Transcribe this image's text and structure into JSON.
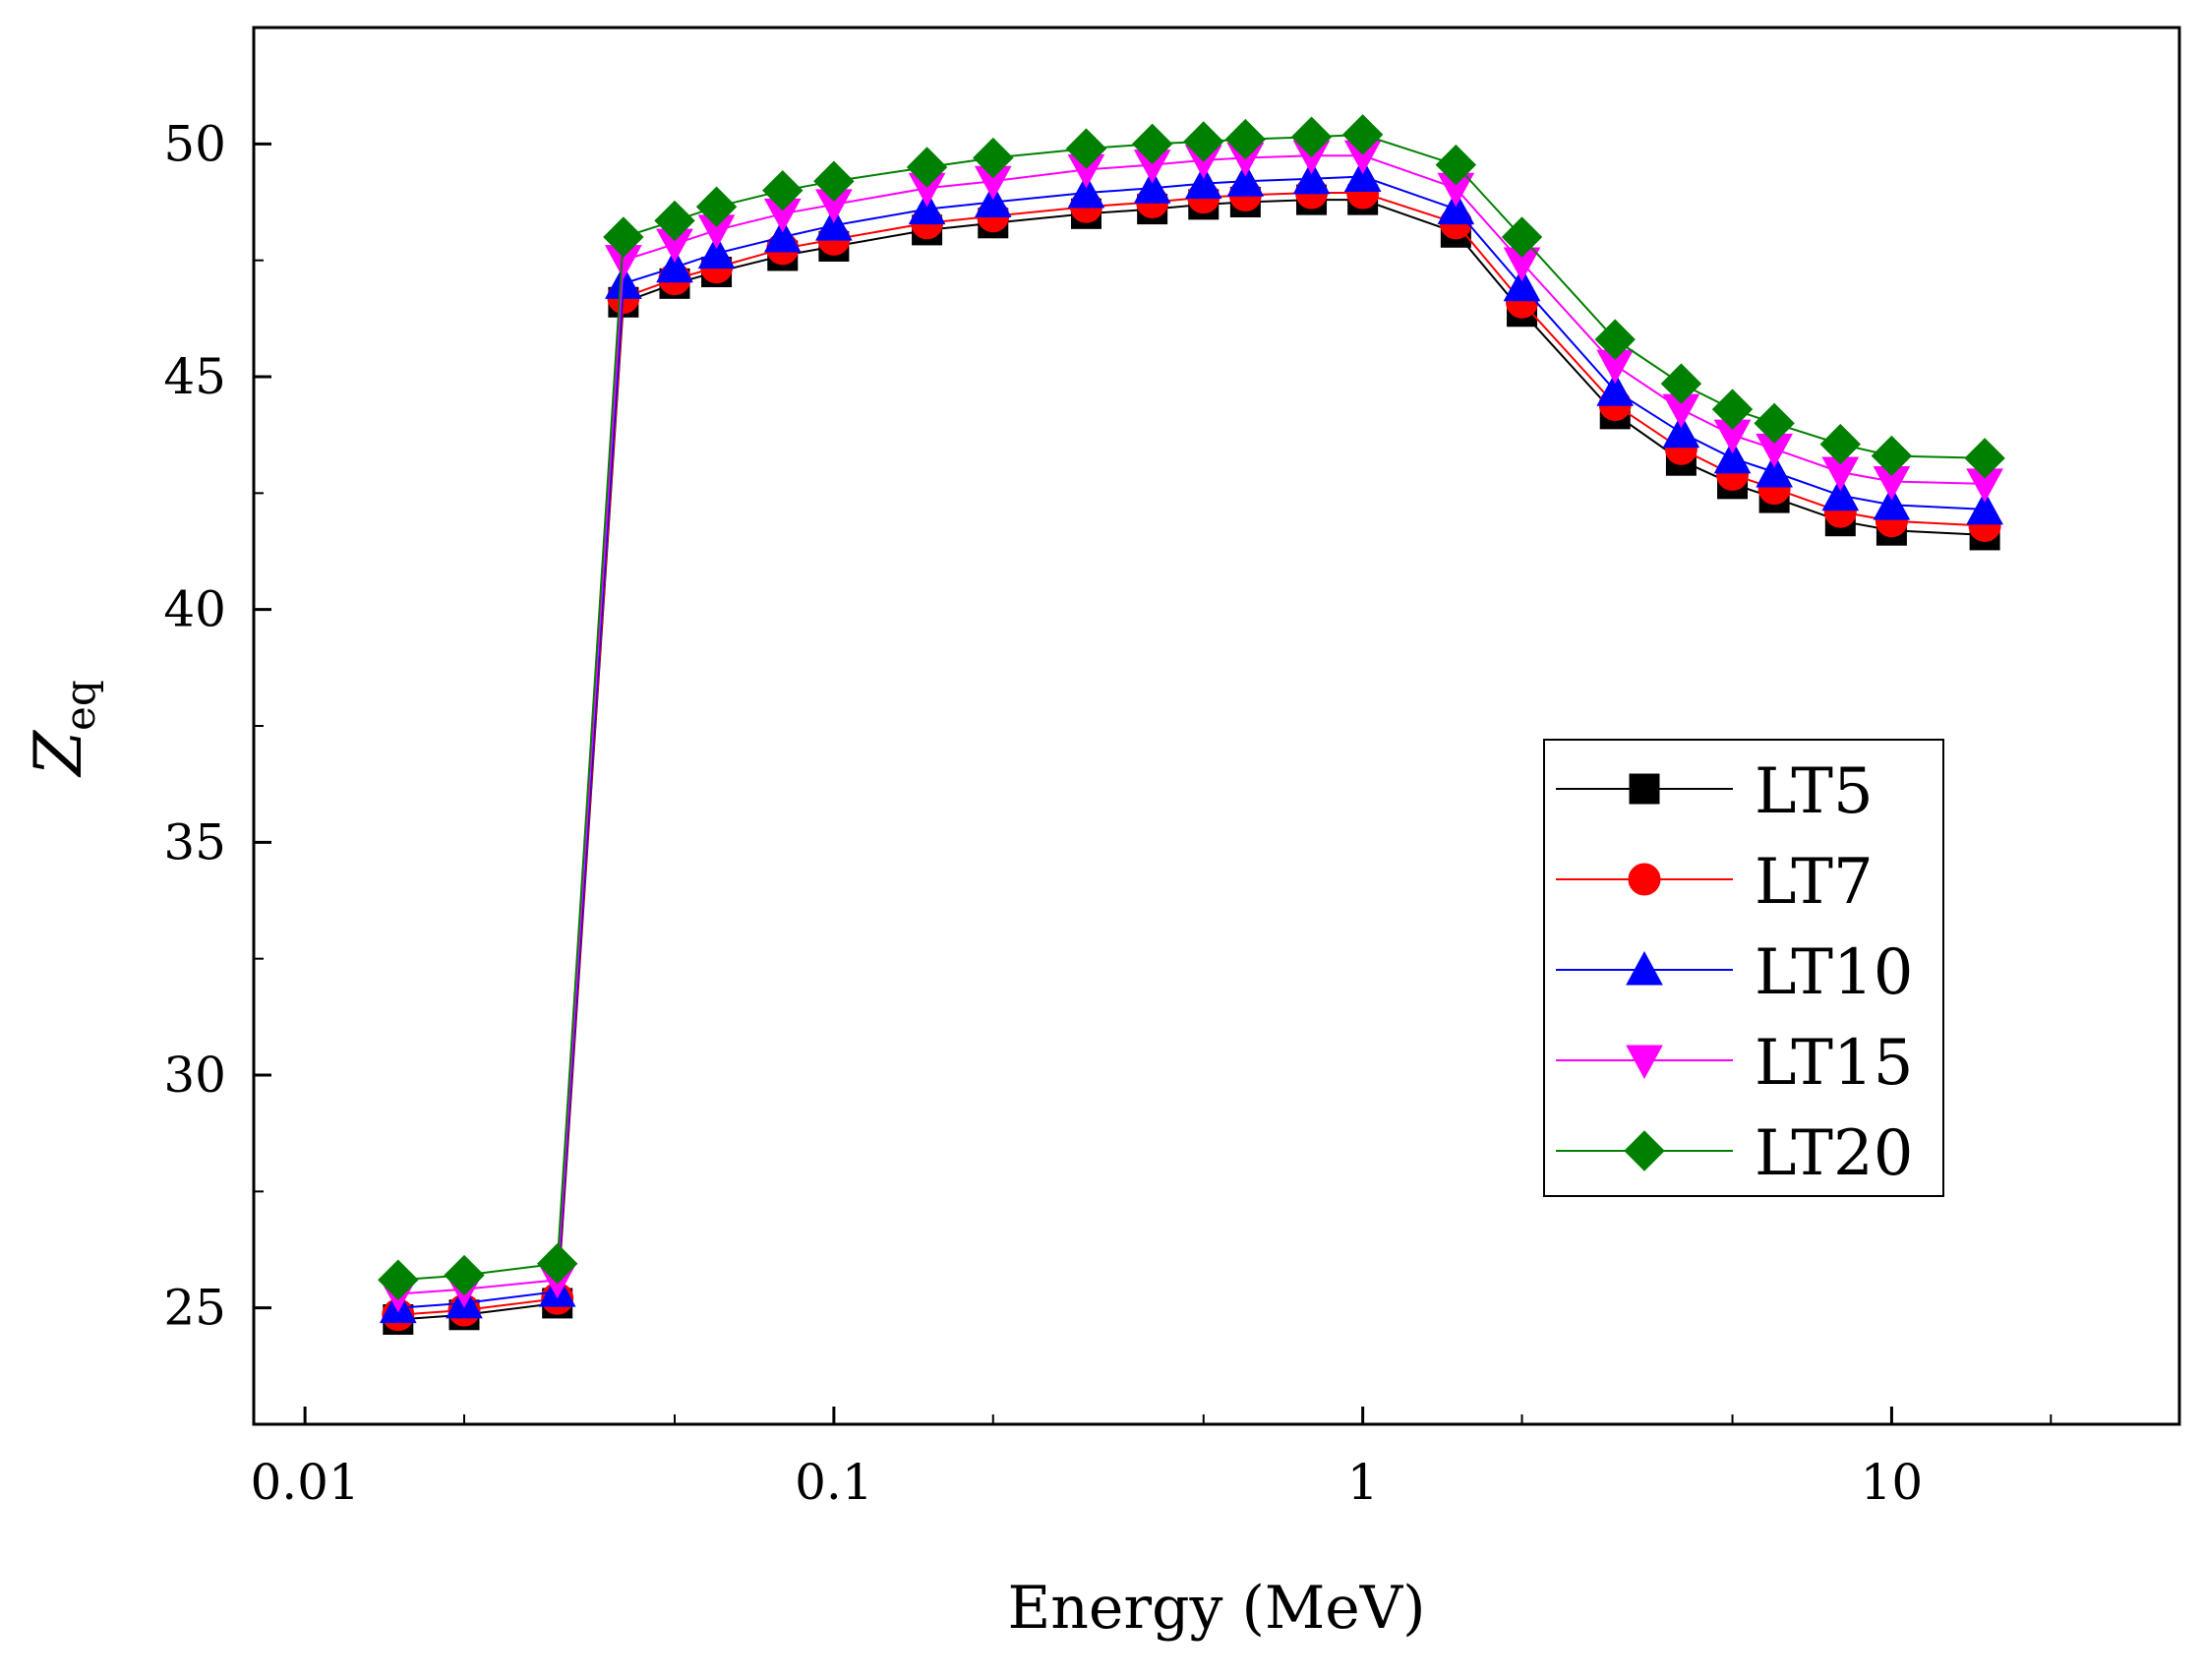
{
  "chart_data": {
    "type": "line",
    "title": "",
    "xlabel": "Energy (MeV)",
    "ylabel_main": "Z",
    "ylabel_sub": "eq",
    "xscale": "log",
    "xlim": [
      0.008,
      35
    ],
    "ylim": [
      22.5,
      52.5
    ],
    "xticks": [
      {
        "value": 0.01,
        "label": "0.01"
      },
      {
        "value": 0.1,
        "label": "0.1"
      },
      {
        "value": 1,
        "label": "1"
      },
      {
        "value": 10,
        "label": "10"
      }
    ],
    "yticks": [
      {
        "value": 25,
        "label": "25"
      },
      {
        "value": 30,
        "label": "30"
      },
      {
        "value": 35,
        "label": "35"
      },
      {
        "value": 40,
        "label": "40"
      },
      {
        "value": 45,
        "label": "45"
      },
      {
        "value": 50,
        "label": "50"
      }
    ],
    "grid": false,
    "legend_position": "center-right",
    "x": [
      0.015,
      0.02,
      0.03,
      0.04,
      0.05,
      0.06,
      0.08,
      0.1,
      0.15,
      0.2,
      0.3,
      0.4,
      0.5,
      0.6,
      0.8,
      1,
      1.5,
      2,
      3,
      4,
      5,
      6,
      8,
      10,
      15
    ],
    "series": [
      {
        "name": "LT5",
        "color": "#000000",
        "marker": "square",
        "values": [
          24.75,
          24.85,
          25.1,
          46.6,
          47.0,
          47.25,
          47.6,
          47.8,
          48.15,
          48.3,
          48.5,
          48.6,
          48.7,
          48.75,
          48.8,
          48.8,
          48.1,
          46.4,
          44.2,
          43.2,
          42.7,
          42.4,
          41.9,
          41.7,
          41.6
        ]
      },
      {
        "name": "LT7",
        "color": "#ff0000",
        "marker": "circle",
        "values": [
          24.85,
          24.95,
          25.2,
          46.7,
          47.1,
          47.35,
          47.75,
          47.95,
          48.3,
          48.45,
          48.65,
          48.75,
          48.85,
          48.9,
          48.95,
          48.95,
          48.3,
          46.6,
          44.4,
          43.45,
          42.9,
          42.6,
          42.1,
          41.9,
          41.8
        ]
      },
      {
        "name": "LT10",
        "color": "#0000ff",
        "marker": "triangle-up",
        "values": [
          25.0,
          25.1,
          25.35,
          47.0,
          47.35,
          47.65,
          48.0,
          48.25,
          48.6,
          48.75,
          48.95,
          49.05,
          49.15,
          49.2,
          49.25,
          49.3,
          48.6,
          46.95,
          44.7,
          43.8,
          43.25,
          42.95,
          42.45,
          42.25,
          42.15
        ]
      },
      {
        "name": "LT15",
        "color": "#ff00ff",
        "marker": "triangle-down",
        "values": [
          25.3,
          25.4,
          25.6,
          47.5,
          47.85,
          48.15,
          48.5,
          48.7,
          49.05,
          49.2,
          49.45,
          49.55,
          49.65,
          49.7,
          49.75,
          49.75,
          49.05,
          47.45,
          45.25,
          44.3,
          43.75,
          43.45,
          42.95,
          42.75,
          42.7
        ]
      },
      {
        "name": "LT20",
        "color": "#008000",
        "marker": "diamond",
        "values": [
          25.6,
          25.7,
          25.95,
          48.0,
          48.35,
          48.65,
          49.0,
          49.2,
          49.5,
          49.7,
          49.9,
          50.0,
          50.05,
          50.1,
          50.15,
          50.2,
          49.55,
          48.0,
          45.8,
          44.85,
          44.3,
          44.0,
          43.55,
          43.3,
          43.25
        ]
      }
    ]
  }
}
